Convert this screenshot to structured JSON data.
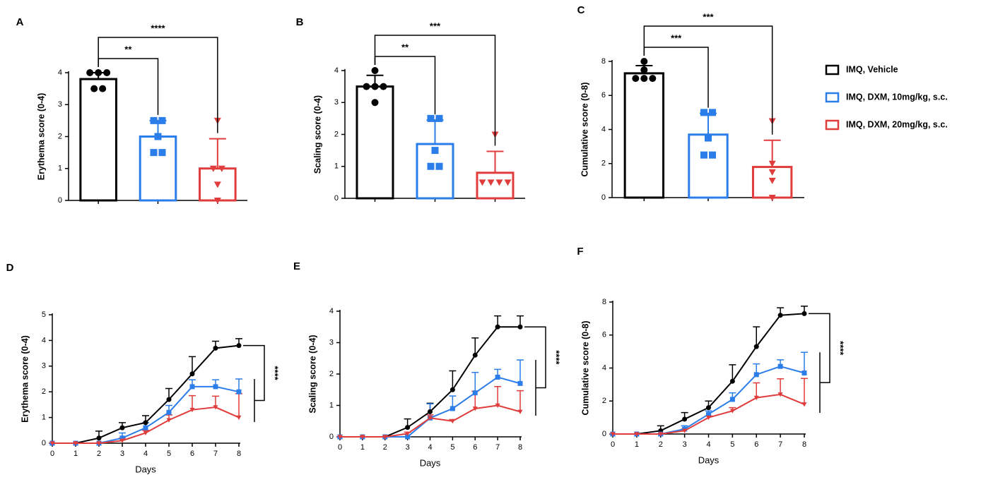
{
  "legend": {
    "entries": [
      {
        "name": "IMQ, Vehicle",
        "color": "#000000"
      },
      {
        "name": "IMQ, DXM, 10mg/kg, s.c.",
        "color": "#2b7de9"
      },
      {
        "name": "IMQ, DXM, 20mg/kg, s.c.",
        "color": "#e03c3c"
      }
    ]
  },
  "chart_data": [
    {
      "type": "bar",
      "label": "A",
      "ylabel": "Erythema score (0-4)",
      "ylim": [
        0,
        4
      ],
      "yticks": [
        0,
        1,
        2,
        3,
        4
      ],
      "colors": [
        "#000000",
        "#2b7de9",
        "#e03c3c"
      ],
      "markers": [
        "circle",
        "square",
        "triangle"
      ],
      "values": [
        3.8,
        2.0,
        1.0
      ],
      "errors": [
        0.2,
        0.5,
        0.93
      ],
      "points": [
        [
          4,
          4,
          4,
          3.5,
          3.5
        ],
        [
          2.5,
          2.5,
          2,
          1.5,
          1.5
        ],
        [
          2.5,
          1,
          1,
          0.5,
          0
        ]
      ],
      "significance": [
        {
          "from": 0,
          "to": 1,
          "label": "**"
        },
        {
          "from": 0,
          "to": 2,
          "label": "****"
        }
      ]
    },
    {
      "type": "bar",
      "label": "B",
      "ylabel": "Scaling score (0-4)",
      "ylim": [
        0,
        4
      ],
      "yticks": [
        0,
        1,
        2,
        3,
        4
      ],
      "colors": [
        "#000000",
        "#2b7de9",
        "#e03c3c"
      ],
      "markers": [
        "circle",
        "square",
        "triangle"
      ],
      "values": [
        3.5,
        1.7,
        0.8
      ],
      "errors": [
        0.35,
        0.75,
        0.67
      ],
      "points": [
        [
          4,
          3.5,
          3.5,
          3.5,
          3
        ],
        [
          2.5,
          2.5,
          1.5,
          1,
          1
        ],
        [
          2,
          0.5,
          0.5,
          0.5,
          0.5
        ]
      ],
      "significance": [
        {
          "from": 0,
          "to": 1,
          "label": "**"
        },
        {
          "from": 0,
          "to": 2,
          "label": "***"
        }
      ]
    },
    {
      "type": "bar",
      "label": "C",
      "ylabel": "Cumulative score (0-8)",
      "ylim": [
        0,
        8
      ],
      "yticks": [
        0,
        2,
        4,
        6,
        8
      ],
      "colors": [
        "#000000",
        "#2b7de9",
        "#e03c3c"
      ],
      "markers": [
        "circle",
        "square",
        "triangle"
      ],
      "values": [
        7.3,
        3.7,
        1.8
      ],
      "errors": [
        0.45,
        1.25,
        1.57
      ],
      "points": [
        [
          8,
          7.5,
          7,
          7,
          7
        ],
        [
          5,
          5,
          3.5,
          2.5,
          2.5
        ],
        [
          4.5,
          2,
          1.5,
          1,
          0
        ]
      ],
      "significance": [
        {
          "from": 0,
          "to": 1,
          "label": "***"
        },
        {
          "from": 0,
          "to": 2,
          "label": "***"
        }
      ]
    },
    {
      "type": "line",
      "label": "D",
      "xlabel": "Days",
      "ylabel": "Erythema score (0-4)",
      "x": [
        0,
        1,
        2,
        3,
        4,
        5,
        6,
        7,
        8
      ],
      "xlim": [
        0,
        8
      ],
      "xticks": [
        0,
        1,
        2,
        3,
        4,
        5,
        6,
        7,
        8
      ],
      "ylim": [
        0,
        5
      ],
      "yticks": [
        0,
        1,
        2,
        3,
        4,
        5
      ],
      "annotation": "****",
      "series": [
        {
          "color": "#000000",
          "marker": "circle",
          "values": [
            0,
            0,
            0.2,
            0.6,
            0.8,
            1.7,
            2.7,
            3.7,
            3.8
          ],
          "errors": [
            0,
            0,
            0.27,
            0.2,
            0.27,
            0.43,
            0.67,
            0.27,
            0.27
          ]
        },
        {
          "color": "#2b7de9",
          "marker": "square",
          "values": [
            0,
            0,
            0,
            0.2,
            0.6,
            1.2,
            2.2,
            2.2,
            2.0
          ],
          "errors": [
            0,
            0,
            0,
            0.2,
            0.2,
            0.27,
            0.27,
            0.27,
            0.5
          ]
        },
        {
          "color": "#e03c3c",
          "marker": "triangle",
          "values": [
            0,
            0,
            0,
            0.1,
            0.4,
            0.9,
            1.3,
            1.4,
            1.0
          ],
          "errors": [
            0,
            0,
            0,
            0.1,
            0.1,
            0.2,
            0.55,
            0.43,
            0.93
          ]
        }
      ]
    },
    {
      "type": "line",
      "label": "E",
      "xlabel": "Days",
      "ylabel": "Scaling score (0-4)",
      "x": [
        0,
        1,
        2,
        3,
        4,
        5,
        6,
        7,
        8
      ],
      "xlim": [
        0,
        8
      ],
      "xticks": [
        0,
        1,
        2,
        3,
        4,
        5,
        6,
        7,
        8
      ],
      "ylim": [
        0,
        4
      ],
      "yticks": [
        0,
        1,
        2,
        3,
        4
      ],
      "annotation": "****",
      "series": [
        {
          "color": "#000000",
          "marker": "circle",
          "values": [
            0,
            0,
            0,
            0.3,
            0.8,
            1.5,
            2.6,
            3.5,
            3.5
          ],
          "errors": [
            0,
            0,
            0,
            0.27,
            0.27,
            0.6,
            0.55,
            0.35,
            0.35
          ]
        },
        {
          "color": "#2b7de9",
          "marker": "square",
          "values": [
            0,
            0,
            0,
            0,
            0.6,
            0.9,
            1.4,
            1.9,
            1.7
          ],
          "errors": [
            0,
            0,
            0,
            0,
            0.45,
            0.4,
            0.65,
            0.25,
            0.75
          ]
        },
        {
          "color": "#e03c3c",
          "marker": "triangle",
          "values": [
            0,
            0,
            0,
            0.1,
            0.6,
            0.5,
            0.9,
            1.0,
            0.8
          ],
          "errors": [
            0,
            0,
            0,
            0.05,
            0.1,
            0.05,
            0.55,
            0.6,
            0.67
          ]
        }
      ]
    },
    {
      "type": "line",
      "label": "F",
      "xlabel": "Days",
      "ylabel": "Cumulative score (0-8)",
      "x": [
        0,
        1,
        2,
        3,
        4,
        5,
        6,
        7,
        8
      ],
      "xlim": [
        0,
        8
      ],
      "xticks": [
        0,
        1,
        2,
        3,
        4,
        5,
        6,
        7,
        8
      ],
      "ylim": [
        0,
        8
      ],
      "yticks": [
        0,
        2,
        4,
        6,
        8
      ],
      "annotation": "****",
      "series": [
        {
          "color": "#000000",
          "marker": "circle",
          "values": [
            0,
            0,
            0.2,
            0.9,
            1.6,
            3.2,
            5.3,
            7.2,
            7.3
          ],
          "errors": [
            0,
            0,
            0.3,
            0.4,
            0.4,
            1.0,
            1.2,
            0.45,
            0.45
          ]
        },
        {
          "color": "#2b7de9",
          "marker": "square",
          "values": [
            0,
            0,
            0,
            0.3,
            1.2,
            2.1,
            3.6,
            4.1,
            3.7
          ],
          "errors": [
            0,
            0,
            0,
            0.2,
            0.2,
            0.4,
            0.65,
            0.4,
            1.25
          ]
        },
        {
          "color": "#e03c3c",
          "marker": "triangle",
          "values": [
            0,
            0,
            0,
            0.2,
            1.0,
            1.4,
            2.2,
            2.4,
            1.8
          ],
          "errors": [
            0,
            0,
            0,
            0.1,
            0.1,
            0.2,
            0.9,
            0.95,
            1.57
          ]
        }
      ]
    }
  ]
}
